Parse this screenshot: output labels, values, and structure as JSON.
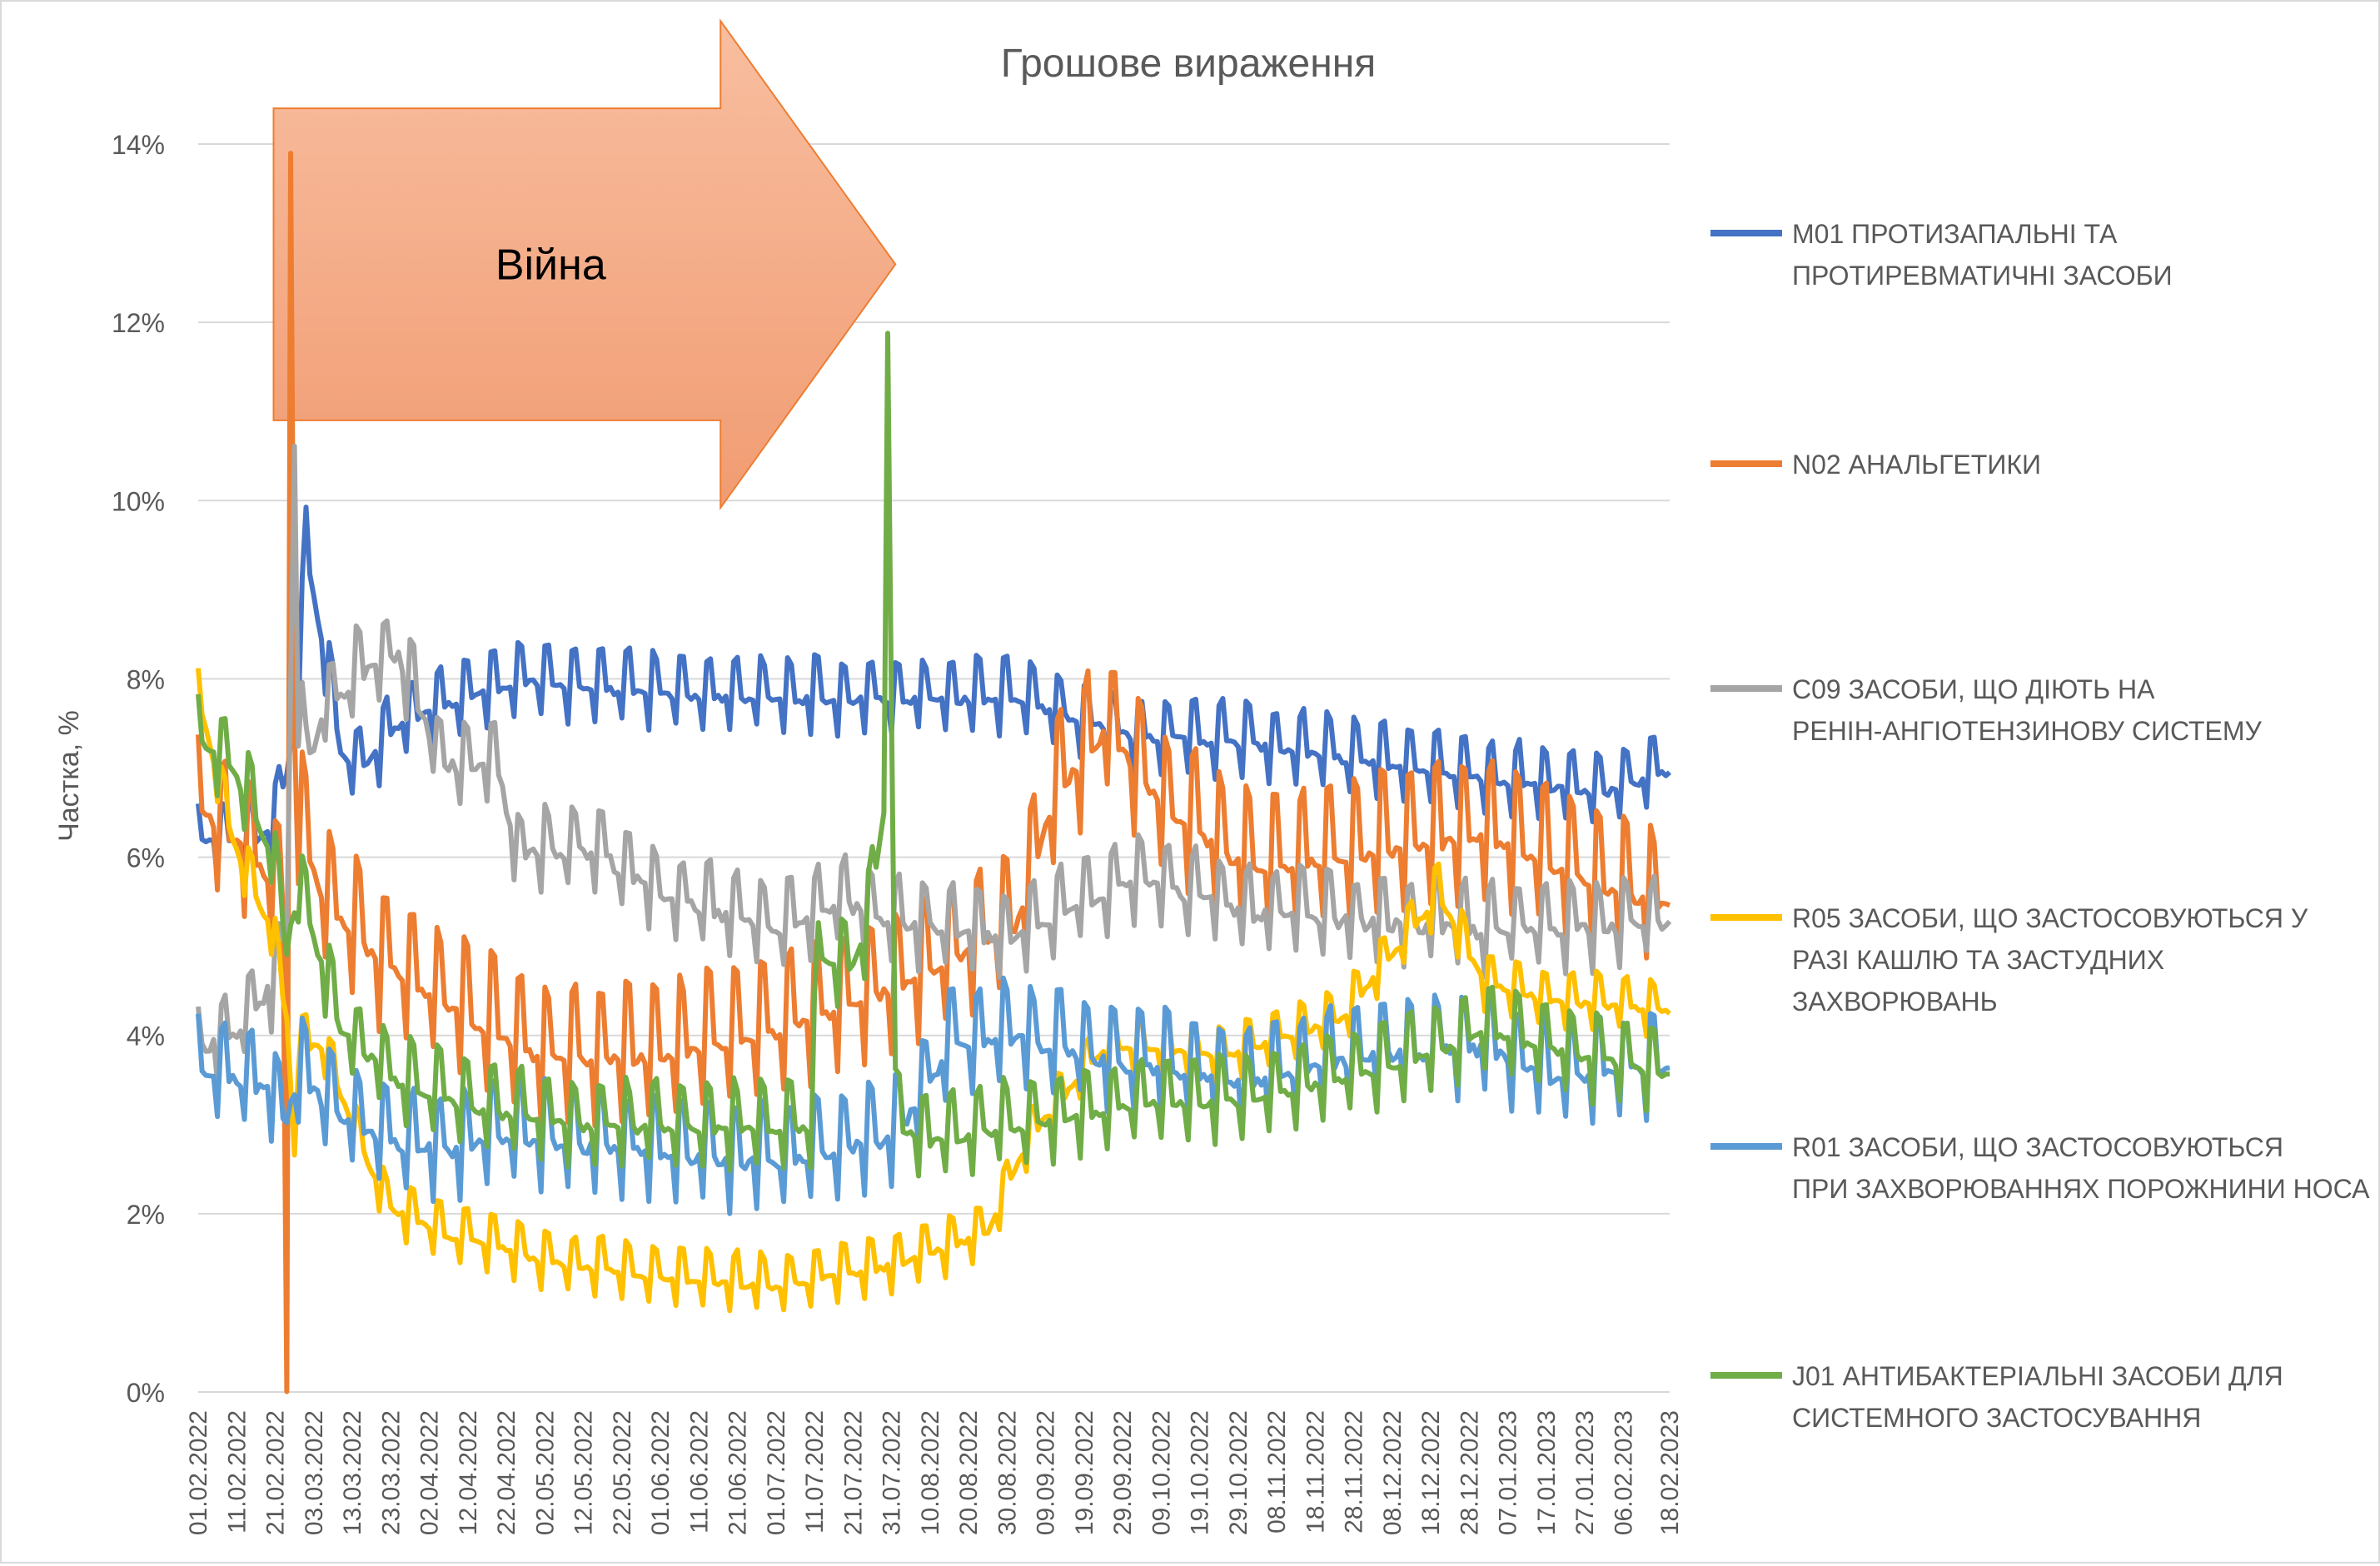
{
  "chart_data": {
    "type": "line",
    "title": "Грошове вираження",
    "xlabel": "",
    "ylabel": "Частка, %",
    "ylim": [
      0,
      14
    ],
    "yticks": [
      0,
      2,
      4,
      6,
      8,
      10,
      12,
      14
    ],
    "ytick_labels": [
      "0%",
      "2%",
      "4%",
      "6%",
      "8%",
      "10%",
      "12%",
      "14%"
    ],
    "grid": true,
    "legend_position": "right",
    "x_start": "01.02.2022",
    "x_end": "18.02.2023",
    "x_tick_labels": [
      "01.02.2022",
      "11.02.2022",
      "21.02.2022",
      "03.03.2022",
      "13.03.2022",
      "23.03.2022",
      "02.04.2022",
      "12.04.2022",
      "22.04.2022",
      "02.05.2022",
      "12.05.2022",
      "22.05.2022",
      "01.06.2022",
      "11.06.2022",
      "21.06.2022",
      "01.07.2022",
      "11.07.2022",
      "21.07.2022",
      "31.07.2022",
      "10.08.2022",
      "20.08.2022",
      "30.08.2022",
      "09.09.2022",
      "19.09.2022",
      "29.09.2022",
      "09.10.2022",
      "19.10.2022",
      "29.10.2022",
      "08.11.2022",
      "18.11.2022",
      "28.11.2022",
      "08.12.2022",
      "18.12.2022",
      "28.12.2022",
      "07.01.2023",
      "17.01.2023",
      "27.01.2023",
      "06.02.2023",
      "18.02.2023"
    ],
    "annotation": {
      "text": "Війна",
      "start": "21.02.2022",
      "end": "01.08.2022",
      "y_top": 14.4,
      "y_bottom": 10.9,
      "fill": "#f4b183",
      "stroke": "#ed7d31"
    },
    "series": [
      {
        "name": "M01 ПРОТИЗАПАЛЬНІ ТА ПРОТИРЕВМАТИЧНІ ЗАСОБИ",
        "color": "#4472c4",
        "x": [
          "01.02.2022",
          "15.02.2022",
          "21.02.2022",
          "24.02.2022",
          "27.02.2022",
          "01.03.2022",
          "05.03.2022",
          "10.03.2022",
          "15.03.2022",
          "25.03.2022",
          "10.04.2022",
          "25.04.2022",
          "10.05.2022",
          "01.06.2022",
          "01.07.2022",
          "01.08.2022",
          "01.09.2022",
          "01.10.2022",
          "01.11.2022",
          "01.12.2022",
          "01.01.2023",
          "01.02.2023",
          "18.02.2023"
        ],
        "base": [
          6.2,
          6.2,
          6.4,
          7.0,
          8.0,
          9.5,
          8.5,
          7.2,
          7.0,
          7.5,
          7.8,
          8.0,
          7.95,
          7.85,
          7.8,
          7.8,
          7.8,
          7.4,
          7.3,
          7.1,
          6.9,
          6.75,
          7.0
        ],
        "weekly_amp": 0.4,
        "noise": 0.08
      },
      {
        "name": "N02 АНАЛЬГЕТИКИ",
        "color": "#ed7d31",
        "x": [
          "01.02.2022",
          "10.02.2022",
          "20.02.2022",
          "23.02.2022",
          "24.02.2022",
          "25.02.2022",
          "26.02.2022",
          "27.02.2022",
          "05.03.2022",
          "20.03.2022",
          "10.04.2022",
          "01.05.2022",
          "01.06.2022",
          "01.07.2022",
          "01.08.2022",
          "01.09.2022",
          "12.09.2022",
          "25.09.2022",
          "10.10.2022",
          "01.11.2022",
          "01.12.2022",
          "01.01.2023",
          "01.02.2023",
          "18.02.2023"
        ],
        "base": [
          6.6,
          6.3,
          5.8,
          5.5,
          0.1,
          14.0,
          7.5,
          6.5,
          5.6,
          4.9,
          4.3,
          3.8,
          3.8,
          4.1,
          4.6,
          5.3,
          6.8,
          7.5,
          6.6,
          5.9,
          6.1,
          6.3,
          5.7,
          5.5
        ],
        "weekly_amp": 0.75,
        "noise": 0.12
      },
      {
        "name": "C09 ЗАСОБИ, ЩО ДІЮТЬ НА РЕНІН-АНГІОТЕНЗИНОВУ СИСТЕМУ",
        "color": "#a5a5a5",
        "x": [
          "01.02.2022",
          "10.02.2022",
          "20.02.2022",
          "24.02.2022",
          "26.02.2022",
          "27.02.2022",
          "01.03.2022",
          "05.03.2022",
          "15.03.2022",
          "25.03.2022",
          "05.04.2022",
          "20.04.2022",
          "25.04.2022",
          "28.04.2022",
          "15.05.2022",
          "01.06.2022",
          "01.07.2022",
          "20.07.2022",
          "31.07.2022",
          "01.09.2022",
          "01.10.2022",
          "01.11.2022",
          "01.12.2022",
          "01.01.2023",
          "18.02.2023"
        ],
        "base": [
          3.9,
          4.0,
          4.6,
          5.2,
          10.6,
          7.8,
          7.0,
          7.6,
          8.1,
          8.3,
          7.1,
          7.0,
          6.0,
          6.1,
          6.1,
          5.6,
          5.2,
          5.5,
          5.3,
          5.1,
          5.8,
          5.4,
          5.3,
          5.2,
          5.3
        ],
        "weekly_amp": 0.45,
        "noise": 0.15
      },
      {
        "name": "R05 ЗАСОБИ, ЩО ЗАСТОСОВУЮТЬСЯ У РАЗІ КАШЛЮ ТА ЗАСТУДНИХ ЗАХВОРЮВАНЬ",
        "color": "#ffc000",
        "x": [
          "01.02.2022",
          "10.02.2022",
          "20.02.2022",
          "24.02.2022",
          "26.02.2022",
          "27.02.2022",
          "05.03.2022",
          "15.03.2022",
          "22.03.2022",
          "05.04.2022",
          "20.04.2022",
          "01.05.2022",
          "01.06.2022",
          "01.07.2022",
          "01.08.2022",
          "25.08.2022",
          "05.09.2022",
          "25.09.2022",
          "25.10.2022",
          "25.11.2022",
          "20.12.2022",
          "01.01.2023",
          "20.01.2023",
          "18.02.2023"
        ],
        "base": [
          7.8,
          6.2,
          5.2,
          4.2,
          2.7,
          3.9,
          3.9,
          2.8,
          2.1,
          1.8,
          1.65,
          1.5,
          1.3,
          1.2,
          1.45,
          1.8,
          2.9,
          3.9,
          3.8,
          4.2,
          5.6,
          4.6,
          4.4,
          4.3
        ],
        "weekly_amp": 0.3,
        "noise": 0.06
      },
      {
        "name": "R01 ЗАСОБИ, ЩО ЗАСТОСОВУЮТЬСЯ ПРИ ЗАХВОРЮВАННЯХ ПОРОЖНИНИ НОСА",
        "color": "#5b9bd5",
        "x": [
          "01.02.2022",
          "20.02.2022",
          "24.02.2022",
          "27.02.2022",
          "10.03.2022",
          "25.03.2022",
          "10.04.2022",
          "22.04.2022",
          "01.06.2022",
          "01.07.2022",
          "01.08.2022",
          "15.08.2022",
          "01.09.2022",
          "01.10.2022",
          "01.11.2022",
          "01.12.2022",
          "01.01.2023",
          "20.01.2023",
          "18.02.2023"
        ],
        "base": [
          3.7,
          3.4,
          3.1,
          3.6,
          3.1,
          2.8,
          2.75,
          2.9,
          2.7,
          2.6,
          2.9,
          3.9,
          4.0,
          3.7,
          3.5,
          3.8,
          3.9,
          3.55,
          3.7
        ],
        "weekly_amp": 0.55,
        "noise": 0.14
      },
      {
        "name": "J01 АНТИБАКТЕРІАЛЬНІ ЗАСОБИ ДЛЯ СИСТЕМНОГО ЗАСТОСУВАННЯ",
        "color": "#70ad47",
        "x": [
          "01.02.2022",
          "10.02.2022",
          "20.02.2022",
          "24.02.2022",
          "27.02.2022",
          "10.03.2022",
          "25.03.2022",
          "15.04.2022",
          "15.05.2022",
          "10.07.2022",
          "12.07.2022",
          "20.07.2022",
          "24.07.2022",
          "29.07.2022",
          "30.07.2022",
          "31.07.2022",
          "01.08.2022",
          "03.08.2022",
          "10.08.2022",
          "01.09.2022",
          "01.10.2022",
          "01.11.2022",
          "01.12.2022",
          "01.01.2023",
          "01.02.2023",
          "18.02.2023"
        ],
        "base": [
          7.4,
          7.0,
          6.1,
          5.0,
          5.7,
          4.1,
          3.5,
          3.2,
          3.0,
          3.0,
          4.9,
          4.8,
          5.1,
          6.5,
          11.9,
          8.0,
          3.1,
          3.0,
          2.85,
          3.0,
          3.25,
          3.3,
          3.6,
          4.05,
          3.75,
          3.6
        ],
        "weekly_amp": 0.45,
        "noise": 0.1
      }
    ]
  }
}
